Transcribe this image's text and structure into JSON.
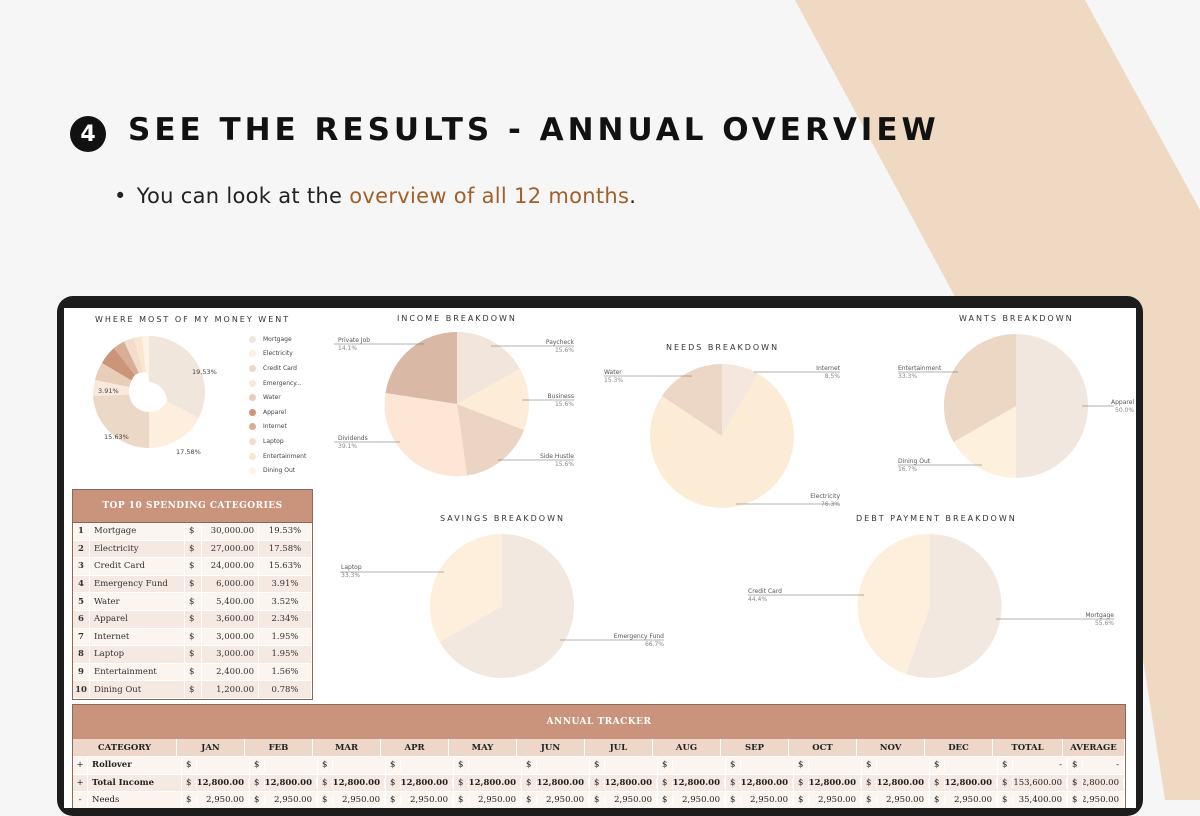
{
  "step_number": "4",
  "heading": "SEE THE RESULTS - ANNUAL OVERVIEW",
  "bullet": {
    "prefix": "You can look at the ",
    "highlight": "overview of all 12 months",
    "suffix": "."
  },
  "colors": {
    "accent": "#a0612a",
    "header_brown": "#c9947b",
    "background_shape": "#efd9c3"
  },
  "spending_chart": {
    "title": "WHERE MOST OF MY MONEY WENT",
    "labels": [
      "19.53%",
      "17.58%",
      "15.63%",
      "3.91%"
    ],
    "legend": [
      "Mortgage",
      "Electricity",
      "Credit Card",
      "Emergency...",
      "Water",
      "Apparel",
      "Internet",
      "Laptop",
      "Entertainment",
      "Dining Out"
    ]
  },
  "income_chart": {
    "title": "INCOME BREAKDOWN",
    "slices": [
      {
        "name": "Paycheck",
        "pct": "15.6%"
      },
      {
        "name": "Business",
        "pct": "15.6%"
      },
      {
        "name": "Side Hustle",
        "pct": "15.6%"
      },
      {
        "name": "Dividends",
        "pct": "39.1%"
      },
      {
        "name": "Private Job",
        "pct": "14.1%"
      }
    ]
  },
  "needs_chart": {
    "title": "NEEDS BREAKDOWN",
    "slices": [
      {
        "name": "Internet",
        "pct": "8.5%"
      },
      {
        "name": "Electricity",
        "pct": "76.3%"
      },
      {
        "name": "Water",
        "pct": "15.3%"
      }
    ]
  },
  "wants_chart": {
    "title": "WANTS BREAKDOWN",
    "slices": [
      {
        "name": "Apparel",
        "pct": "50.0%"
      },
      {
        "name": "Dining Out",
        "pct": "16.7%"
      },
      {
        "name": "Entertainment",
        "pct": "33.3%"
      }
    ]
  },
  "savings_chart": {
    "title": "SAVINGS BREAKDOWN",
    "slices": [
      {
        "name": "Emergency Fund",
        "pct": "66.7%"
      },
      {
        "name": "Laptop",
        "pct": "33.3%"
      }
    ]
  },
  "debt_chart": {
    "title": "DEBT PAYMENT BREAKDOWN",
    "slices": [
      {
        "name": "Mortgage",
        "pct": "55.6%"
      },
      {
        "name": "Credit Card",
        "pct": "44.4%"
      }
    ]
  },
  "top10": {
    "title": "TOP 10 SPENDING CATEGORIES",
    "rows": [
      {
        "rank": "1",
        "name": "Mortgage",
        "cur": "$",
        "amount": "30,000.00",
        "pct": "19.53%"
      },
      {
        "rank": "2",
        "name": "Electricity",
        "cur": "$",
        "amount": "27,000.00",
        "pct": "17.58%"
      },
      {
        "rank": "3",
        "name": "Credit Card",
        "cur": "$",
        "amount": "24,000.00",
        "pct": "15.63%"
      },
      {
        "rank": "4",
        "name": "Emergency Fund",
        "cur": "$",
        "amount": "6,000.00",
        "pct": "3.91%"
      },
      {
        "rank": "5",
        "name": "Water",
        "cur": "$",
        "amount": "5,400.00",
        "pct": "3.52%"
      },
      {
        "rank": "6",
        "name": "Apparel",
        "cur": "$",
        "amount": "3,600.00",
        "pct": "2.34%"
      },
      {
        "rank": "7",
        "name": "Internet",
        "cur": "$",
        "amount": "3,000.00",
        "pct": "1.95%"
      },
      {
        "rank": "8",
        "name": "Laptop",
        "cur": "$",
        "amount": "3,000.00",
        "pct": "1.95%"
      },
      {
        "rank": "9",
        "name": "Entertainment",
        "cur": "$",
        "amount": "2,400.00",
        "pct": "1.56%"
      },
      {
        "rank": "10",
        "name": "Dining Out",
        "cur": "$",
        "amount": "1,200.00",
        "pct": "0.78%"
      }
    ]
  },
  "tracker": {
    "title": "ANNUAL TRACKER",
    "columns": [
      "CATEGORY",
      "JAN",
      "FEB",
      "MAR",
      "APR",
      "MAY",
      "JUN",
      "JUL",
      "AUG",
      "SEP",
      "OCT",
      "NOV",
      "DEC",
      "TOTAL",
      "AVERAGE"
    ],
    "rows": [
      {
        "toggle": "+",
        "category": "Rollover",
        "months": [
          "",
          "",
          "",
          "",
          "",
          "",
          "",
          "",
          "",
          "",
          "",
          ""
        ],
        "total": "-",
        "average": "-"
      },
      {
        "toggle": "+",
        "category": "Total Income",
        "months": [
          "12,800.00",
          "12,800.00",
          "12,800.00",
          "12,800.00",
          "12,800.00",
          "12,800.00",
          "12,800.00",
          "12,800.00",
          "12,800.00",
          "12,800.00",
          "12,800.00",
          "12,800.00"
        ],
        "total": "153,600.00",
        "average": "12,800.00"
      },
      {
        "toggle": "-",
        "category": "Needs",
        "months": [
          "2,950.00",
          "2,950.00",
          "2,950.00",
          "2,950.00",
          "2,950.00",
          "2,950.00",
          "2,950.00",
          "2,950.00",
          "2,950.00",
          "2,950.00",
          "2,950.00",
          "2,950.00"
        ],
        "total": "35,400.00",
        "average": "2,950.00"
      }
    ],
    "currency": "$"
  }
}
